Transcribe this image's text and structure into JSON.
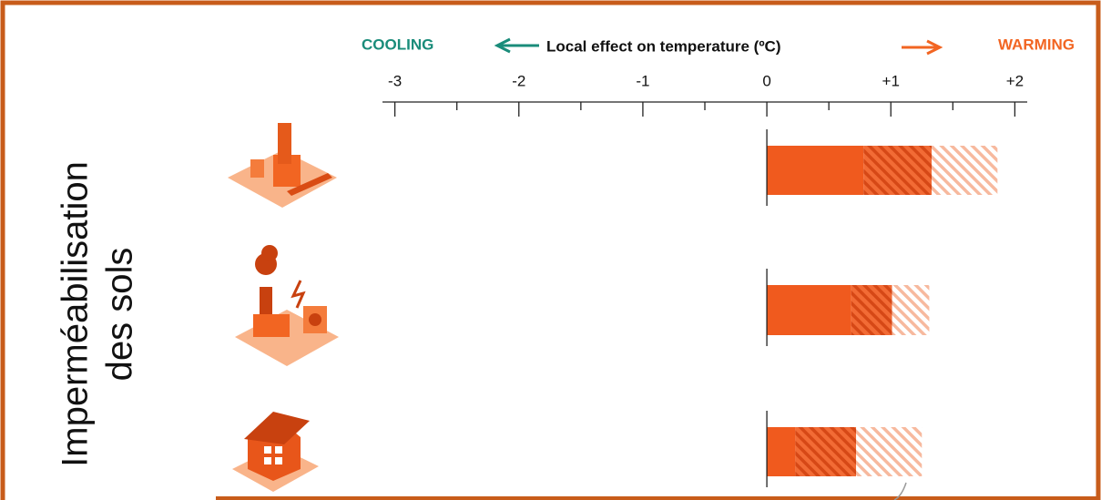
{
  "chart_data": {
    "type": "hbar-stacked",
    "axis_title": "Local effect on temperature (ºC)",
    "left_note": "COOLING",
    "left_note_color": "#1a8c7a",
    "right_note": "WARMING",
    "right_note_color": "#f26522",
    "side_label": [
      "Imperméabilisation",
      "des sols"
    ],
    "xlim": [
      -3.1,
      2.1
    ],
    "xticks": [
      -3,
      -2,
      -1,
      0,
      {
        "value": 1,
        "label": "+1"
      },
      {
        "value": 2,
        "label": "+2"
      }
    ],
    "xminorticks": [
      -2.5,
      -1.5,
      -0.5,
      0.5,
      1.5
    ],
    "series": [
      {
        "color": "#f05a1e",
        "values": [
          0.78,
          0.68,
          0.23
        ]
      },
      {
        "color": "#f26b35",
        "hatch": "#d64816",
        "values": [
          0.55,
          0.33,
          0.49
        ]
      },
      {
        "color": "#ffffff",
        "hatch": "#f7b99e",
        "values": [
          0.53,
          0.3,
          0.53
        ]
      }
    ]
  }
}
